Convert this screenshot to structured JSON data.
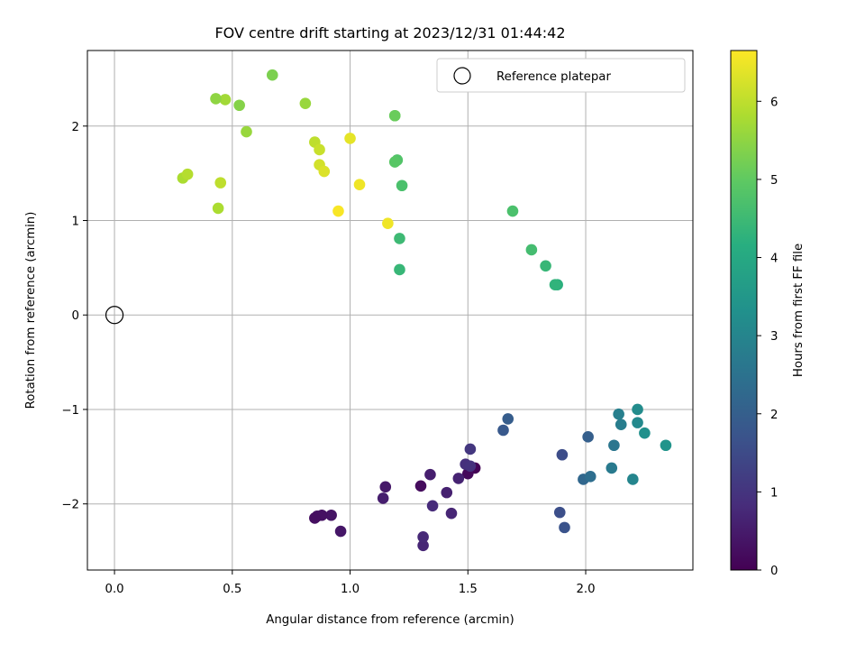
{
  "chart_data": {
    "type": "scatter",
    "title": "FOV centre drift starting at 2023/12/31 01:44:42",
    "xlabel": "Angular distance from reference (arcmin)",
    "ylabel": "Rotation from reference (arcmin)",
    "colorbar_label": "Hours from first FF file",
    "colormap": "viridis",
    "xlim": [
      -0.115,
      2.455
    ],
    "ylim": [
      -2.7,
      2.8
    ],
    "xticks": [
      0.0,
      0.5,
      1.0,
      1.5,
      2.0
    ],
    "xtick_labels": [
      "0.0",
      "0.5",
      "1.0",
      "1.5",
      "2.0"
    ],
    "yticks": [
      -2,
      -1,
      0,
      1,
      2
    ],
    "ytick_labels": [
      "−2",
      "−1",
      "0",
      "1",
      "2"
    ],
    "colorbar_ticks": [
      0,
      1,
      2,
      3,
      4,
      5,
      6
    ],
    "colorbar_tick_labels": [
      "0",
      "1",
      "2",
      "3",
      "4",
      "5",
      "6"
    ],
    "colorbar_range": [
      0,
      6.65
    ],
    "grid": true,
    "legend": {
      "position": "top-right",
      "entries": [
        "Reference platepar"
      ]
    },
    "reference_point": {
      "x": 0.0,
      "y": 0.0
    },
    "series": [
      {
        "name": "Reference platepar",
        "x": [
          0.0
        ],
        "y": [
          0.0
        ],
        "marker": "open-circle"
      },
      {
        "name": "",
        "x": [
          1.53,
          1.5,
          1.3,
          1.15,
          1.34,
          1.14,
          1.41,
          1.46,
          1.43,
          1.31,
          1.31,
          1.35,
          1.49,
          1.51,
          1.51,
          0.96,
          0.92,
          0.88,
          0.86,
          0.85,
          1.65,
          1.67,
          1.9,
          1.89,
          1.91,
          2.01,
          1.99,
          2.02,
          2.12,
          2.11,
          2.15,
          2.14,
          2.2,
          2.22,
          2.22,
          2.25,
          2.34,
          1.69,
          1.77,
          1.83,
          1.88,
          1.87,
          1.21,
          1.21,
          1.22,
          1.2,
          1.19,
          1.19,
          1.19,
          0.67,
          0.81,
          0.53,
          0.56,
          0.47,
          0.43,
          0.44,
          0.29,
          0.31,
          0.45,
          0.85,
          0.87,
          0.87,
          0.89,
          1.0,
          1.04,
          1.16,
          0.95
        ],
        "y": [
          -1.62,
          -1.68,
          -1.81,
          -1.82,
          -1.69,
          -1.94,
          -1.88,
          -1.73,
          -2.1,
          -2.44,
          -2.35,
          -2.02,
          -1.58,
          -1.6,
          -1.42,
          -2.29,
          -2.12,
          -2.12,
          -2.13,
          -2.15,
          -1.22,
          -1.1,
          -1.48,
          -2.09,
          -2.25,
          -1.29,
          -1.74,
          -1.71,
          -1.38,
          -1.62,
          -1.16,
          -1.05,
          -1.74,
          -1.14,
          -1.0,
          -1.25,
          -1.38,
          1.1,
          0.69,
          0.52,
          0.32,
          0.32,
          0.48,
          0.81,
          1.37,
          1.64,
          1.62,
          2.11,
          2.11,
          2.54,
          2.24,
          2.22,
          1.94,
          2.28,
          2.29,
          1.13,
          1.45,
          1.49,
          1.4,
          1.83,
          1.75,
          1.59,
          1.52,
          1.87,
          1.38,
          0.97,
          1.1
        ],
        "hours": [
          0.05,
          0.15,
          0.2,
          0.45,
          0.55,
          0.55,
          0.6,
          0.65,
          0.7,
          0.7,
          0.75,
          0.8,
          0.9,
          0.95,
          1.05,
          0.4,
          0.35,
          0.3,
          0.3,
          0.25,
          1.85,
          1.95,
          1.55,
          1.6,
          1.7,
          2.0,
          2.2,
          2.4,
          2.6,
          2.7,
          2.8,
          2.85,
          3.0,
          3.1,
          3.2,
          3.3,
          3.4,
          4.7,
          4.6,
          4.4,
          4.2,
          4.3,
          4.4,
          4.5,
          4.7,
          4.8,
          4.9,
          5.0,
          5.1,
          5.3,
          5.6,
          5.4,
          5.6,
          5.7,
          5.5,
          5.8,
          5.8,
          5.9,
          6.0,
          6.0,
          6.1,
          6.2,
          6.3,
          6.4,
          6.5,
          6.5,
          6.6
        ]
      }
    ]
  }
}
